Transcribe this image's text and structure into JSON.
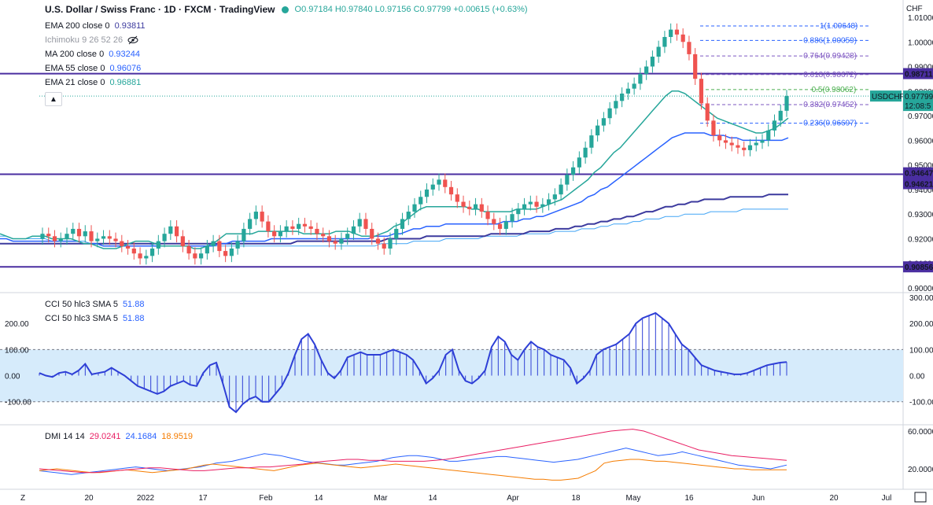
{
  "header": {
    "symbol_title": "U.S. Dollar / Swiss Franc · 1D · FXCM · TradingView",
    "ohlc": "O0.97184 H0.97840 L0.97156 C0.97799 +0.00615 (+0.63%)"
  },
  "indicators": [
    {
      "label": "EMA 200 close 0",
      "value": "0.93811",
      "color": "#3c3a9e"
    },
    {
      "label": "Ichimoku 9 26 52 26",
      "value": "",
      "color": "#9598a1"
    },
    {
      "label": "MA 200 close 0",
      "value": "0.93244",
      "color": "#2962ff"
    },
    {
      "label": "EMA 55 close 0",
      "value": "0.96076",
      "color": "#2962ff"
    },
    {
      "label": "EMA 21 close 0",
      "value": "0.96881",
      "color": "#26a69a"
    }
  ],
  "cci_legend": [
    {
      "label": "CCI 50 hlc3 SMA 5",
      "value": "51.88"
    },
    {
      "label": "CCI 50 hlc3 SMA 5",
      "value": "51.88"
    }
  ],
  "dmi_legend": {
    "label": "DMI 14 14",
    "v1": "29.0241",
    "v2": "24.1684",
    "v3": "18.9519"
  },
  "currency_label": "CHF",
  "price_axis_ticks": [
    "1.01000",
    "1.00000",
    "0.99000",
    "0.98000",
    "0.97000",
    "0.96000",
    "0.95000",
    "0.94000",
    "0.93000",
    "0.92000",
    "0.91000",
    "0.90000"
  ],
  "price_badges": [
    {
      "text": "0.98711",
      "color": "#4a2ea0"
    },
    {
      "text": "0.94647",
      "color": "#4a2ea0"
    },
    {
      "text": "0.94621",
      "color": "#4a2ea0"
    },
    {
      "text": "0.90856",
      "color": "#4a2ea0"
    }
  ],
  "current_price": {
    "symbol": "USDCHF",
    "price": "0.97799",
    "countdown": "12:08:5"
  },
  "fib_labels": [
    {
      "text": "1(1.00648)",
      "color": "#2962ff"
    },
    {
      "text": "0.886(1.00059)",
      "color": "#2962ff"
    },
    {
      "text": "0.764(0.99428)",
      "color": "#7e57c2"
    },
    {
      "text": "0.618(0.98672)",
      "color": "#7e57c2"
    },
    {
      "text": "0.5(0.98062)",
      "color": "#4caf50"
    },
    {
      "text": "0.382(0.97452)",
      "color": "#7e57c2"
    },
    {
      "text": "0.236(0.96697)",
      "color": "#2962ff"
    }
  ],
  "cci_axis_ticks": [
    "300.00",
    "200.00",
    "100.00",
    "0.00",
    "-100.00"
  ],
  "cci_left_ticks": [
    "300.00",
    "200.00",
    "100.00",
    "0.00",
    "-100.00"
  ],
  "dmi_axis_ticks": [
    "60.0000",
    "20.0000"
  ],
  "time_axis_labels": [
    "20",
    "2022",
    "17",
    "Feb",
    "14",
    "Mar",
    "14",
    "Apr",
    "18",
    "May",
    "16",
    "Jun",
    "20",
    "Jul"
  ],
  "chart_data": {
    "type": "candlestick",
    "title": "U.S. Dollar / Swiss Franc",
    "price_ylim": [
      0.9,
      1.01
    ],
    "horizontal_levels": [
      0.98711,
      0.94647,
      0.94621,
      0.90856
    ],
    "fibonacci": [
      {
        "ratio": 1,
        "price": 1.00648
      },
      {
        "ratio": 0.886,
        "price": 1.00059
      },
      {
        "ratio": 0.764,
        "price": 0.99428
      },
      {
        "ratio": 0.618,
        "price": 0.98672
      },
      {
        "ratio": 0.5,
        "price": 0.98062
      },
      {
        "ratio": 0.382,
        "price": 0.97452
      },
      {
        "ratio": 0.236,
        "price": 0.96697
      }
    ],
    "closes": [
      0.922,
      0.921,
      0.919,
      0.92,
      0.922,
      0.924,
      0.921,
      0.923,
      0.919,
      0.92,
      0.921,
      0.92,
      0.919,
      0.917,
      0.916,
      0.914,
      0.912,
      0.913,
      0.916,
      0.919,
      0.922,
      0.925,
      0.921,
      0.917,
      0.914,
      0.912,
      0.914,
      0.917,
      0.919,
      0.915,
      0.913,
      0.916,
      0.919,
      0.924,
      0.928,
      0.931,
      0.927,
      0.923,
      0.921,
      0.923,
      0.925,
      0.924,
      0.926,
      0.925,
      0.924,
      0.922,
      0.921,
      0.919,
      0.918,
      0.92,
      0.922,
      0.925,
      0.928,
      0.924,
      0.92,
      0.918,
      0.916,
      0.92,
      0.924,
      0.928,
      0.931,
      0.934,
      0.937,
      0.94,
      0.942,
      0.944,
      0.941,
      0.938,
      0.935,
      0.933,
      0.932,
      0.934,
      0.931,
      0.928,
      0.926,
      0.924,
      0.927,
      0.93,
      0.932,
      0.934,
      0.935,
      0.933,
      0.934,
      0.936,
      0.938,
      0.942,
      0.946,
      0.949,
      0.953,
      0.957,
      0.962,
      0.966,
      0.969,
      0.973,
      0.976,
      0.979,
      0.981,
      0.983,
      0.987,
      0.99,
      0.994,
      0.998,
      1.002,
      1.005,
      1.003,
      1.0,
      0.995,
      0.985,
      0.975,
      0.968,
      0.962,
      0.96,
      0.959,
      0.958,
      0.957,
      0.956,
      0.958,
      0.959,
      0.96,
      0.964,
      0.968,
      0.972,
      0.978
    ],
    "ema21": [
      0.922,
      0.921,
      0.92,
      0.92,
      0.92,
      0.921,
      0.921,
      0.921,
      0.92,
      0.92,
      0.92,
      0.92,
      0.919,
      0.918,
      0.918,
      0.917,
      0.916,
      0.916,
      0.916,
      0.917,
      0.918,
      0.919,
      0.919,
      0.919,
      0.918,
      0.917,
      0.917,
      0.917,
      0.917,
      0.917,
      0.916,
      0.916,
      0.917,
      0.918,
      0.92,
      0.922,
      0.922,
      0.922,
      0.922,
      0.922,
      0.923,
      0.923,
      0.923,
      0.923,
      0.923,
      0.923,
      0.923,
      0.922,
      0.922,
      0.922,
      0.922,
      0.922,
      0.923,
      0.923,
      0.923,
      0.922,
      0.921,
      0.921,
      0.921,
      0.922,
      0.923,
      0.925,
      0.926,
      0.928,
      0.93,
      0.932,
      0.933,
      0.933,
      0.933,
      0.933,
      0.933,
      0.933,
      0.933,
      0.932,
      0.932,
      0.931,
      0.931,
      0.931,
      0.931,
      0.931,
      0.932,
      0.932,
      0.932,
      0.932,
      0.933,
      0.934,
      0.935,
      0.936,
      0.938,
      0.94,
      0.942,
      0.944,
      0.947,
      0.949,
      0.952,
      0.955,
      0.957,
      0.96,
      0.963,
      0.966,
      0.969,
      0.972,
      0.975,
      0.978,
      0.98,
      0.98,
      0.979,
      0.977,
      0.975,
      0.973,
      0.971,
      0.969,
      0.968,
      0.967,
      0.966,
      0.965,
      0.964,
      0.963,
      0.963,
      0.964,
      0.965,
      0.967,
      0.969
    ],
    "ema55": [
      0.92,
      0.92,
      0.919,
      0.919,
      0.919,
      0.919,
      0.919,
      0.919,
      0.919,
      0.919,
      0.919,
      0.919,
      0.919,
      0.918,
      0.918,
      0.918,
      0.917,
      0.917,
      0.917,
      0.917,
      0.917,
      0.917,
      0.917,
      0.917,
      0.917,
      0.917,
      0.917,
      0.917,
      0.917,
      0.917,
      0.917,
      0.917,
      0.917,
      0.917,
      0.918,
      0.918,
      0.919,
      0.919,
      0.919,
      0.919,
      0.919,
      0.919,
      0.92,
      0.92,
      0.92,
      0.92,
      0.92,
      0.92,
      0.92,
      0.92,
      0.92,
      0.92,
      0.92,
      0.92,
      0.92,
      0.92,
      0.92,
      0.92,
      0.921,
      0.921,
      0.921,
      0.922,
      0.922,
      0.923,
      0.924,
      0.924,
      0.925,
      0.925,
      0.925,
      0.926,
      0.926,
      0.926,
      0.926,
      0.926,
      0.926,
      0.926,
      0.926,
      0.926,
      0.927,
      0.927,
      0.927,
      0.928,
      0.928,
      0.929,
      0.929,
      0.93,
      0.931,
      0.932,
      0.933,
      0.934,
      0.935,
      0.937,
      0.938,
      0.94,
      0.941,
      0.943,
      0.945,
      0.947,
      0.949,
      0.951,
      0.953,
      0.955,
      0.957,
      0.959,
      0.961,
      0.962,
      0.963,
      0.963,
      0.963,
      0.963,
      0.962,
      0.962,
      0.962,
      0.961,
      0.961,
      0.96,
      0.96,
      0.96,
      0.96,
      0.96,
      0.96,
      0.96,
      0.961
    ],
    "ema200": [
      0.918,
      0.918,
      0.918,
      0.918,
      0.918,
      0.918,
      0.918,
      0.918,
      0.918,
      0.918,
      0.918,
      0.918,
      0.918,
      0.918,
      0.918,
      0.918,
      0.918,
      0.918,
      0.918,
      0.918,
      0.918,
      0.918,
      0.918,
      0.918,
      0.918,
      0.918,
      0.918,
      0.918,
      0.918,
      0.918,
      0.918,
      0.918,
      0.918,
      0.918,
      0.918,
      0.918,
      0.918,
      0.918,
      0.918,
      0.918,
      0.918,
      0.918,
      0.918,
      0.918,
      0.918,
      0.918,
      0.919,
      0.919,
      0.919,
      0.919,
      0.919,
      0.919,
      0.919,
      0.919,
      0.919,
      0.919,
      0.919,
      0.919,
      0.919,
      0.919,
      0.92,
      0.92,
      0.92,
      0.92,
      0.92,
      0.92,
      0.921,
      0.921,
      0.921,
      0.921,
      0.921,
      0.921,
      0.921,
      0.921,
      0.921,
      0.921,
      0.922,
      0.922,
      0.922,
      0.922,
      0.922,
      0.922,
      0.923,
      0.923,
      0.923,
      0.923,
      0.924,
      0.924,
      0.924,
      0.925,
      0.925,
      0.926,
      0.926,
      0.927,
      0.927,
      0.928,
      0.928,
      0.929,
      0.929,
      0.93,
      0.931,
      0.931,
      0.932,
      0.933,
      0.933,
      0.934,
      0.934,
      0.935,
      0.935,
      0.936,
      0.936,
      0.936,
      0.936,
      0.937,
      0.937,
      0.937,
      0.937,
      0.937,
      0.937,
      0.938,
      0.938,
      0.938,
      0.938
    ],
    "ma200": [
      0.921,
      0.921,
      0.92,
      0.92,
      0.92,
      0.92,
      0.92,
      0.92,
      0.919,
      0.919,
      0.919,
      0.919,
      0.919,
      0.919,
      0.918,
      0.918,
      0.918,
      0.918,
      0.918,
      0.918,
      0.918,
      0.918,
      0.918,
      0.918,
      0.917,
      0.917,
      0.917,
      0.917,
      0.917,
      0.917,
      0.917,
      0.917,
      0.917,
      0.917,
      0.917,
      0.917,
      0.917,
      0.917,
      0.917,
      0.917,
      0.917,
      0.917,
      0.917,
      0.917,
      0.917,
      0.917,
      0.917,
      0.917,
      0.917,
      0.917,
      0.917,
      0.917,
      0.917,
      0.917,
      0.917,
      0.917,
      0.917,
      0.917,
      0.917,
      0.918,
      0.918,
      0.918,
      0.918,
      0.918,
      0.919,
      0.919,
      0.919,
      0.919,
      0.919,
      0.92,
      0.92,
      0.92,
      0.92,
      0.92,
      0.92,
      0.921,
      0.921,
      0.921,
      0.921,
      0.921,
      0.921,
      0.922,
      0.922,
      0.922,
      0.922,
      0.922,
      0.923,
      0.923,
      0.923,
      0.923,
      0.924,
      0.924,
      0.924,
      0.925,
      0.925,
      0.926,
      0.926,
      0.926,
      0.927,
      0.927,
      0.928,
      0.928,
      0.928,
      0.929,
      0.929,
      0.929,
      0.93,
      0.93,
      0.93,
      0.93,
      0.931,
      0.931,
      0.931,
      0.931,
      0.931,
      0.932,
      0.932,
      0.932,
      0.932,
      0.932,
      0.932,
      0.932,
      0.932
    ],
    "cci_ylim": [
      -140,
      300
    ],
    "cci": [
      10,
      0,
      -5,
      10,
      15,
      5,
      20,
      45,
      5,
      10,
      15,
      30,
      15,
      0,
      -20,
      -40,
      -50,
      -60,
      -70,
      -60,
      -40,
      -30,
      -20,
      -35,
      -40,
      10,
      40,
      50,
      -30,
      -120,
      -140,
      -110,
      -90,
      -80,
      -100,
      -100,
      -70,
      -40,
      10,
      80,
      140,
      160,
      120,
      60,
      10,
      -10,
      20,
      70,
      80,
      90,
      80,
      80,
      80,
      90,
      100,
      90,
      80,
      60,
      20,
      -30,
      -10,
      20,
      80,
      100,
      20,
      -20,
      -30,
      -10,
      20,
      110,
      150,
      130,
      80,
      60,
      100,
      130,
      110,
      100,
      80,
      70,
      60,
      30,
      -30,
      -10,
      20,
      80,
      100,
      110,
      120,
      140,
      160,
      200,
      220,
      230,
      240,
      220,
      200,
      160,
      120,
      100,
      70,
      40,
      30,
      20,
      15,
      10,
      5,
      5,
      10,
      20,
      30,
      40,
      45,
      50,
      52
    ],
    "dmi_ylim": [
      0,
      65
    ],
    "dmi_plus": [
      18,
      17,
      16,
      15,
      14,
      15,
      16,
      17,
      18,
      19,
      20,
      21,
      22,
      21,
      20,
      19,
      18,
      19,
      20,
      21,
      22,
      24,
      26,
      27,
      28,
      30,
      32,
      34,
      36,
      35,
      34,
      32,
      30,
      28,
      27,
      26,
      25,
      24,
      24,
      25,
      26,
      27,
      28,
      30,
      32,
      33,
      34,
      34,
      33,
      32,
      30,
      28,
      28,
      29,
      30,
      31,
      32,
      33,
      33,
      32,
      31,
      30,
      29,
      28,
      27,
      28,
      29,
      30,
      32,
      34,
      36,
      38,
      40,
      42,
      40,
      38,
      36,
      34,
      35,
      36,
      38,
      36,
      34,
      32,
      30,
      28,
      26,
      24,
      23,
      22,
      21,
      20,
      22,
      24
    ],
    "dmi_minus": [
      18,
      19,
      20,
      19,
      18,
      17,
      16,
      16,
      17,
      18,
      19,
      18,
      17,
      16,
      17,
      18,
      19,
      20,
      22,
      24,
      25,
      24,
      23,
      22,
      21,
      20,
      19,
      18,
      20,
      22,
      24,
      25,
      26,
      25,
      24,
      23,
      22,
      21,
      22,
      23,
      24,
      25,
      24,
      23,
      22,
      21,
      20,
      19,
      18,
      17,
      16,
      15,
      14,
      13,
      12,
      11,
      10,
      9,
      9,
      8,
      8,
      9,
      10,
      14,
      18,
      26,
      28,
      29,
      30,
      30,
      29,
      28,
      28,
      27,
      26,
      25,
      24,
      23,
      22,
      21,
      20,
      20,
      19,
      19,
      19,
      19,
      19
    ],
    "adx": [
      20,
      19,
      18,
      17,
      16,
      16,
      17,
      18,
      19,
      20,
      21,
      21,
      20,
      19,
      18,
      18,
      19,
      20,
      21,
      21,
      22,
      22,
      23,
      24,
      25,
      27,
      28,
      29,
      30,
      30,
      29,
      29,
      28,
      28,
      28,
      28,
      29,
      30,
      32,
      34,
      36,
      38,
      40,
      42,
      44,
      46,
      48,
      50,
      52,
      54,
      56,
      58,
      60,
      61,
      62,
      60,
      56,
      52,
      48,
      44,
      40,
      38,
      36,
      34,
      33,
      32,
      31,
      30,
      29
    ]
  }
}
